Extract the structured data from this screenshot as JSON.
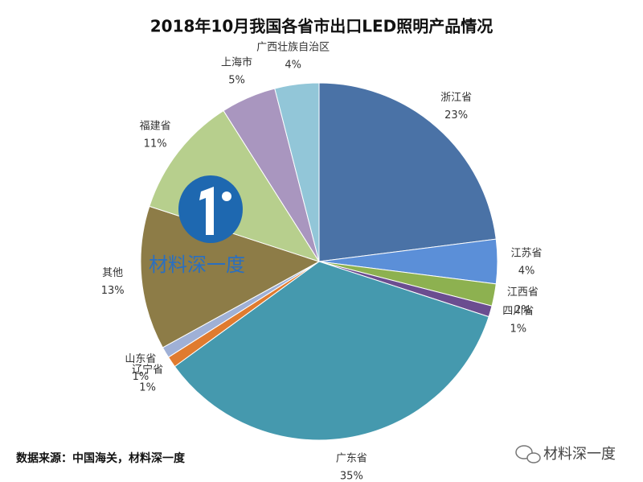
{
  "chart_data": {
    "type": "pie",
    "title": "2018年10月我国各省市出口LED照明产品情况",
    "categories": [
      "浙江省",
      "江苏省",
      "江西省",
      "四川省",
      "广东省",
      "辽宁省",
      "山东省",
      "其他",
      "福建省",
      "上海市",
      "广西壮族自治区"
    ],
    "values": [
      23,
      4,
      2,
      1,
      35,
      1,
      1,
      13,
      11,
      5,
      4
    ],
    "value_labels": [
      "23%",
      "4%",
      "2%",
      "1%",
      "35%",
      "1%",
      "1%",
      "13%",
      "11%",
      "5%",
      "4%"
    ],
    "colors": [
      "#4a72a6",
      "#5b8fd8",
      "#8db150",
      "#6b4d90",
      "#4599ae",
      "#e07b2f",
      "#9fb0d6",
      "#8d7c47",
      "#b7cf8d",
      "#a996bf",
      "#92c6d8"
    ],
    "source": "数据来源：中国海关，材料深一度",
    "watermark": "材料深一度",
    "brand": "材料深一度"
  }
}
